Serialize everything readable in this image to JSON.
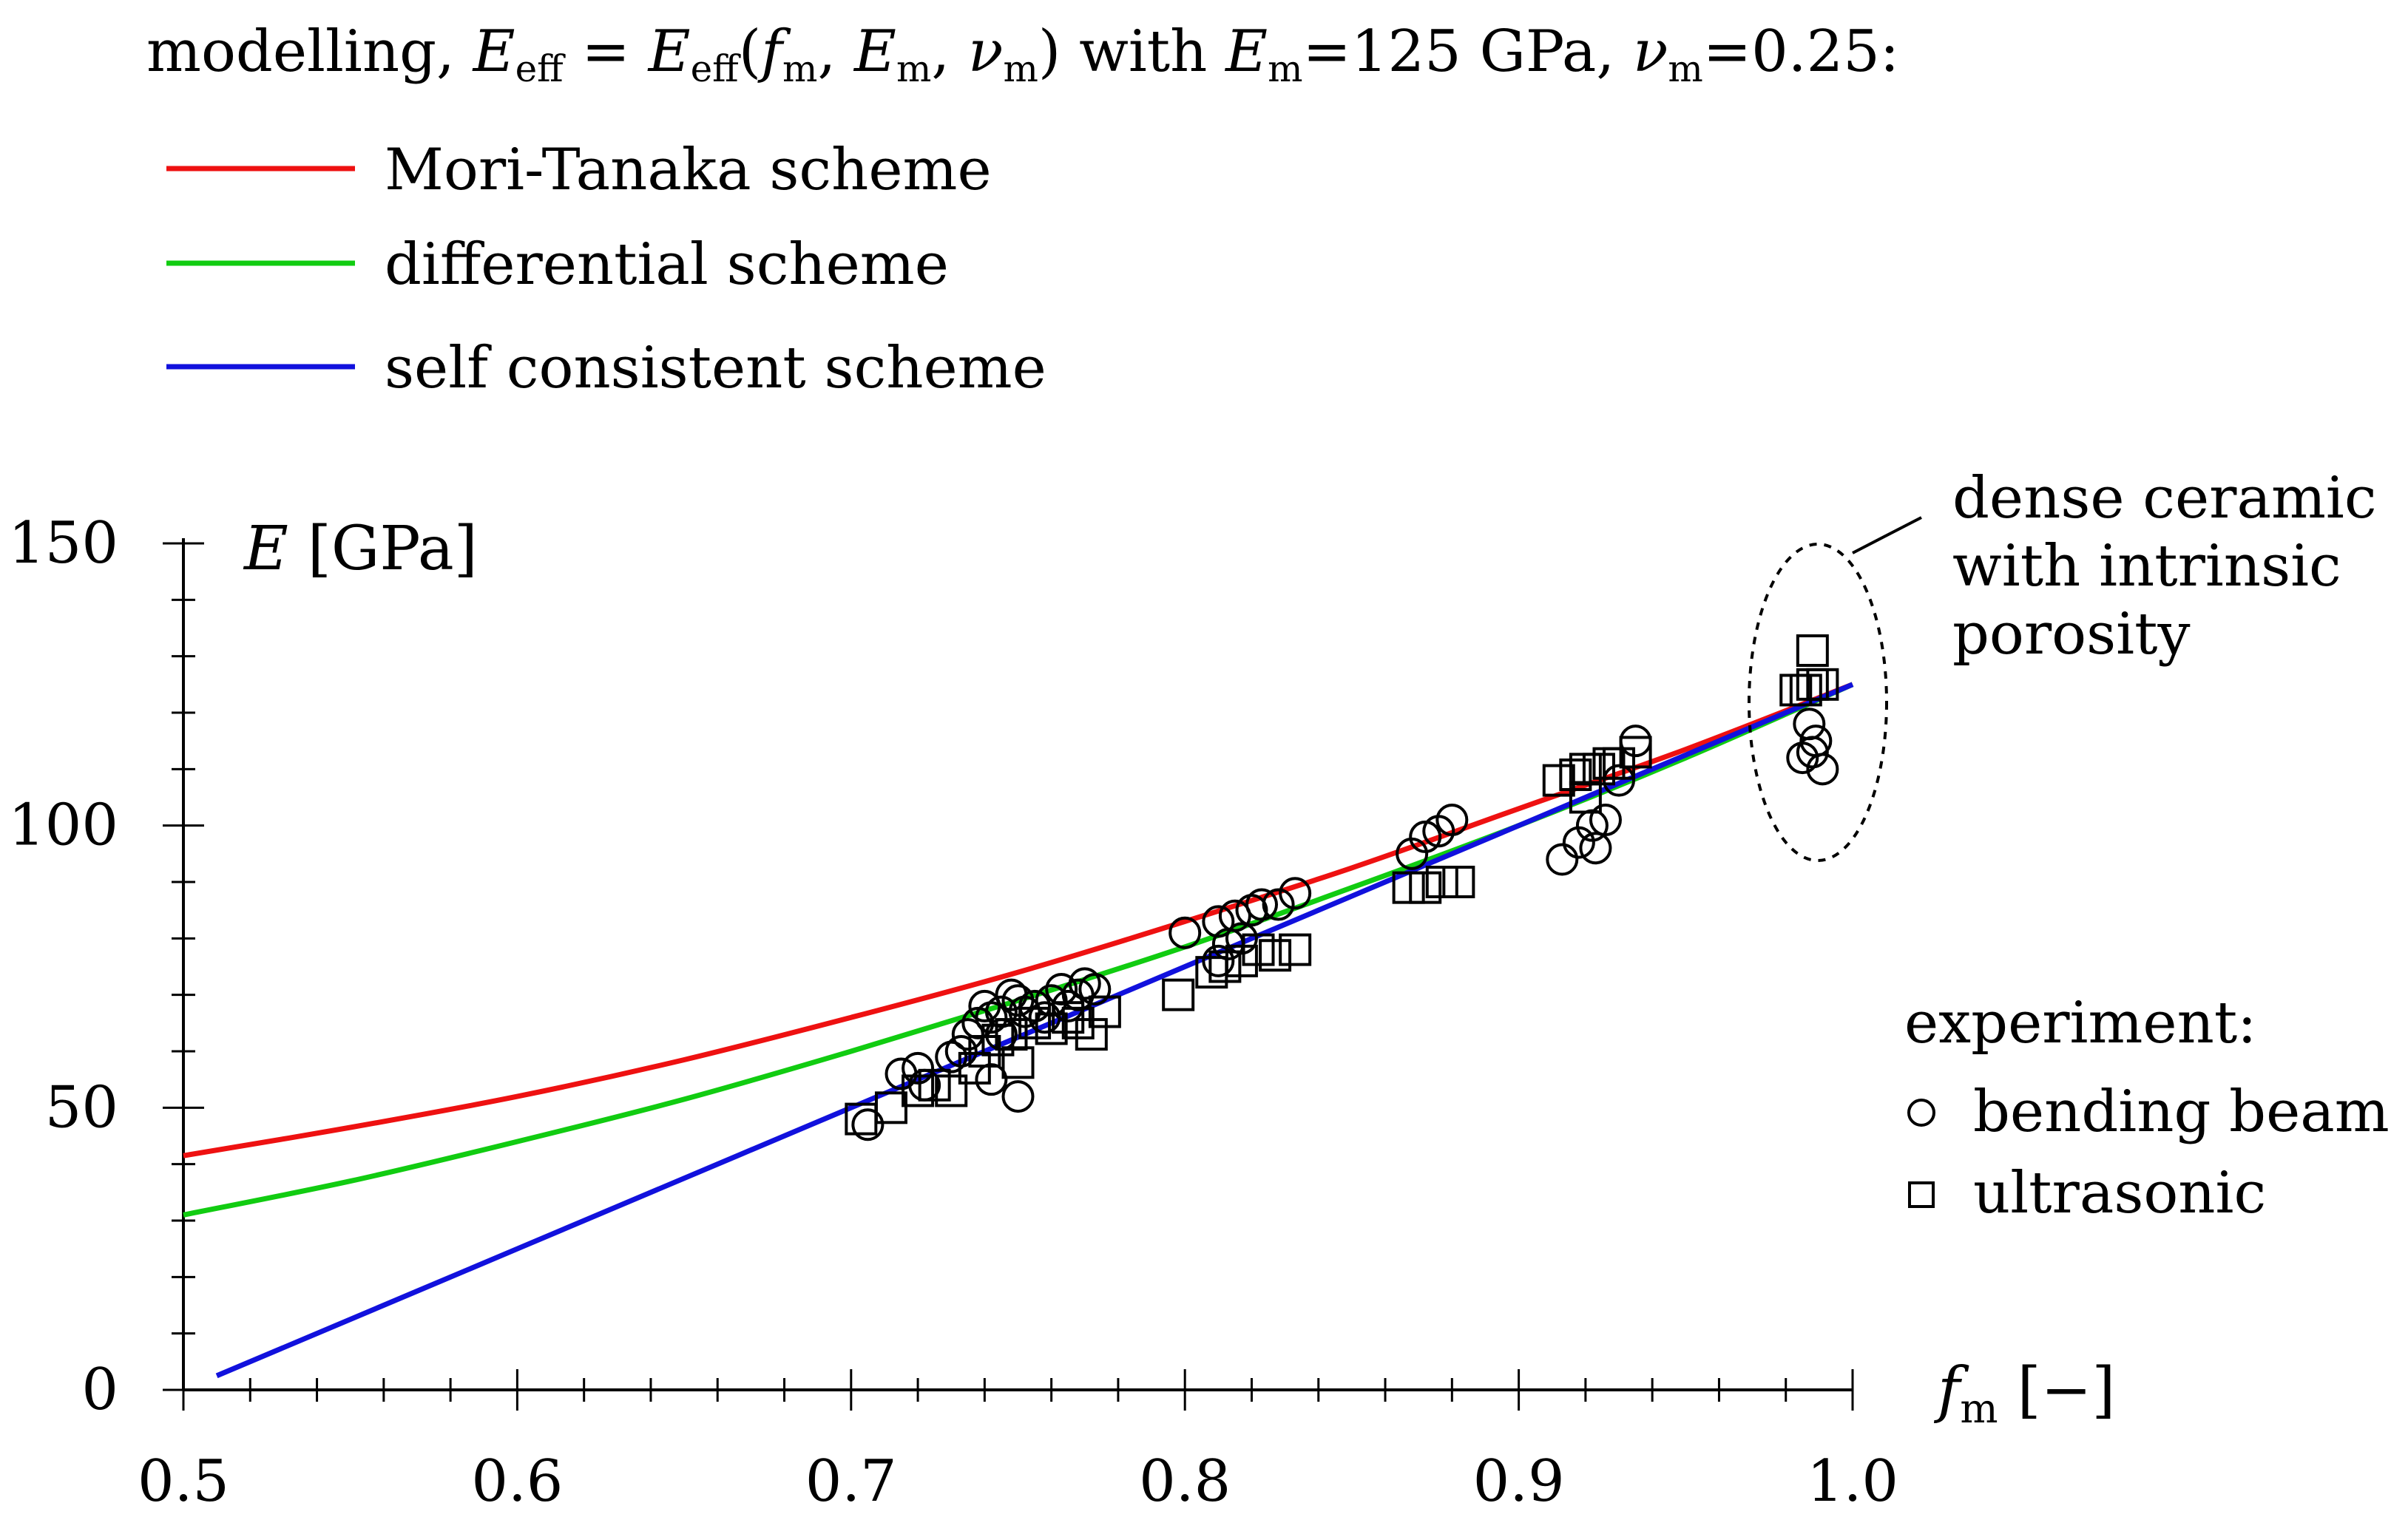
{
  "chart_data": {
    "type": "line",
    "header_text": "modelling, E_eff = E_eff(f_m, E_m, ν_m) with E_m=125 GPa, ν_m=0.25:",
    "legend": [
      {
        "label": "Mori-Tanaka scheme",
        "color": "#ee1111"
      },
      {
        "label": "differential scheme",
        "color": "#11cc11"
      },
      {
        "label": "self consistent scheme",
        "color": "#1111dd"
      }
    ],
    "xlabel": "f_m [−]",
    "ylabel": "E [GPa]",
    "xlim": [
      0.5,
      1.0
    ],
    "ylim": [
      0,
      150
    ],
    "xticks": [
      0.5,
      0.6,
      0.7,
      0.8,
      0.9,
      1.0
    ],
    "xtick_labels": [
      "0.5",
      "0.6",
      "0.7",
      "0.8",
      "0.9",
      "1.0"
    ],
    "yticks": [
      0,
      50,
      100,
      150
    ],
    "ytick_labels": [
      "0",
      "50",
      "100",
      "150"
    ],
    "series": [
      {
        "name": "Mori-Tanaka scheme",
        "color": "#ee1111",
        "x": [
          0.5,
          0.55,
          0.6,
          0.65,
          0.7,
          0.75,
          0.8,
          0.85,
          0.9,
          0.95,
          1.0
        ],
        "y": [
          41.5,
          46.5,
          52,
          58.5,
          66,
          74,
          83,
          92.5,
          103,
          113.5,
          125
        ]
      },
      {
        "name": "differential scheme",
        "color": "#11cc11",
        "x": [
          0.5,
          0.55,
          0.6,
          0.65,
          0.7,
          0.75,
          0.8,
          0.85,
          0.9,
          0.95,
          1.0
        ],
        "y": [
          31,
          37,
          44,
          51.5,
          60,
          69,
          78.5,
          89,
          100,
          112,
          125
        ]
      },
      {
        "name": "self consistent scheme",
        "color": "#1111dd",
        "x": [
          0.51,
          0.6,
          0.7,
          0.8,
          0.9,
          1.0
        ],
        "y": [
          2.5,
          25,
          50,
          75,
          100,
          125
        ]
      }
    ],
    "experiment_title": "experiment:",
    "experiment": [
      {
        "name": "bending beam",
        "marker": "circle",
        "x": [
          0.705,
          0.715,
          0.72,
          0.722,
          0.73,
          0.733,
          0.735,
          0.738,
          0.74,
          0.742,
          0.745,
          0.748,
          0.75,
          0.752,
          0.755,
          0.758,
          0.76,
          0.763,
          0.765,
          0.768,
          0.77,
          0.773,
          0.742,
          0.75,
          0.745,
          0.8,
          0.81,
          0.815,
          0.82,
          0.823,
          0.828,
          0.833,
          0.81,
          0.813,
          0.817,
          0.868,
          0.872,
          0.876,
          0.88,
          0.913,
          0.918,
          0.922,
          0.923,
          0.926,
          0.93,
          0.935,
          0.985,
          0.987,
          0.989,
          0.991,
          0.988
        ],
        "y": [
          47,
          56,
          57,
          54,
          59,
          60,
          63,
          65,
          68,
          66,
          67,
          70,
          69,
          67,
          68,
          66,
          69,
          71,
          68,
          70,
          72,
          71,
          55,
          52,
          63,
          81,
          83,
          84,
          85,
          86,
          86,
          88,
          76,
          79,
          80,
          95,
          98,
          99,
          101,
          94,
          97,
          100,
          96,
          101,
          108,
          115,
          112,
          118,
          115,
          110,
          113
        ]
      },
      {
        "name": "ultrasonic",
        "marker": "square",
        "x": [
          0.703,
          0.712,
          0.72,
          0.725,
          0.73,
          0.737,
          0.74,
          0.744,
          0.748,
          0.75,
          0.755,
          0.76,
          0.765,
          0.768,
          0.772,
          0.776,
          0.798,
          0.808,
          0.812,
          0.817,
          0.822,
          0.827,
          0.833,
          0.867,
          0.872,
          0.877,
          0.882,
          0.912,
          0.917,
          0.92,
          0.924,
          0.927,
          0.93,
          0.935,
          0.92,
          0.983,
          0.986,
          0.988,
          0.991,
          0.988
        ],
        "y": [
          48,
          50,
          53,
          54,
          53,
          57,
          60,
          62,
          63,
          58,
          65,
          64,
          66,
          65,
          63,
          67,
          70,
          74,
          75,
          76,
          78,
          77,
          78,
          89,
          89,
          90,
          90,
          108,
          109,
          110,
          110,
          111,
          111,
          113,
          105,
          124,
          124,
          125,
          125,
          131
        ]
      }
    ],
    "annotation": "dense ceramic with intrinsic porosity",
    "annotation_lines": [
      "dense ceramic",
      "with intrinsic",
      "porosity"
    ]
  }
}
